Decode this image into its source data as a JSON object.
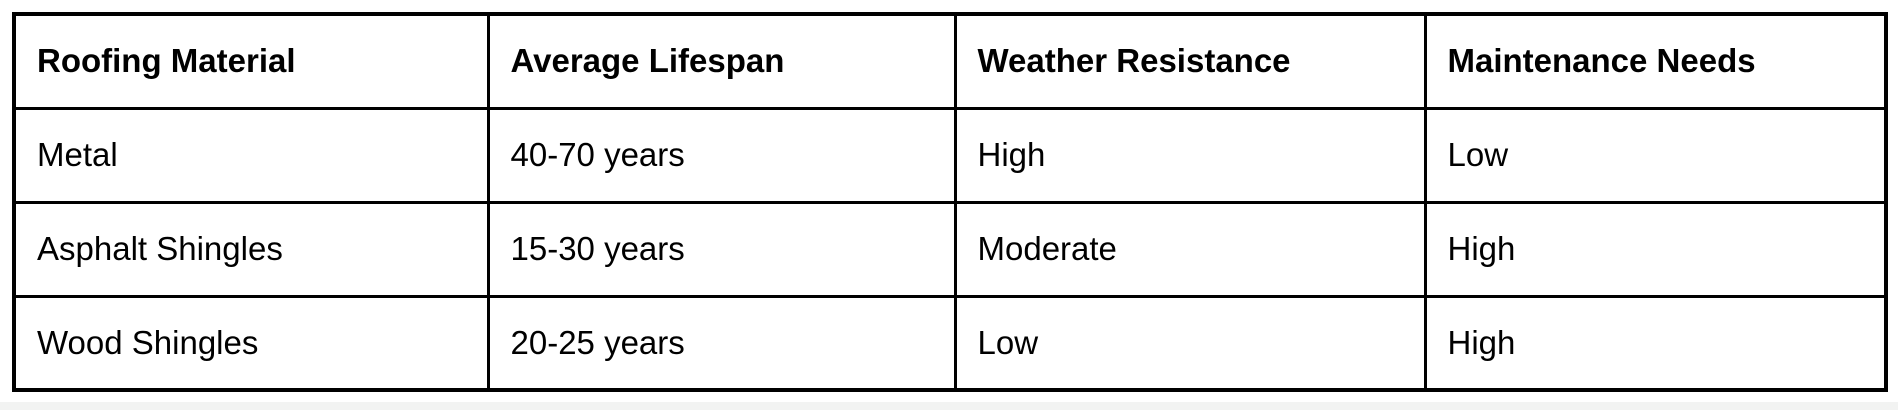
{
  "page": {
    "background": "#ffffff",
    "bottom_strip_color": "#f2f3f2"
  },
  "table": {
    "border_color": "#000000",
    "text_color": "#000000",
    "columns": [
      "Roofing Material",
      "Average Lifespan",
      "Weather Resistance",
      "Maintenance Needs"
    ],
    "rows": [
      [
        "Metal",
        "40-70 years",
        "High",
        "Low"
      ],
      [
        "Asphalt Shingles",
        "15-30 years",
        "Moderate",
        "High"
      ],
      [
        "Wood Shingles",
        "20-25 years",
        "Low",
        "High"
      ]
    ]
  },
  "chart_data": {
    "type": "table",
    "columns": [
      "Roofing Material",
      "Average Lifespan",
      "Weather Resistance",
      "Maintenance Needs"
    ],
    "rows": [
      {
        "roofing_material": "Metal",
        "average_lifespan": "40-70 years",
        "weather_resistance": "High",
        "maintenance_needs": "Low"
      },
      {
        "roofing_material": "Asphalt Shingles",
        "average_lifespan": "15-30 years",
        "weather_resistance": "Moderate",
        "maintenance_needs": "High"
      },
      {
        "roofing_material": "Wood Shingles",
        "average_lifespan": "20-25 years",
        "weather_resistance": "Low",
        "maintenance_needs": "High"
      }
    ],
    "layout_hints": {
      "grid": "all-borders",
      "header_style": "bold",
      "lifespan_numeric_ranges_years": [
        [
          40,
          70
        ],
        [
          15,
          30
        ],
        [
          20,
          25
        ]
      ]
    }
  }
}
